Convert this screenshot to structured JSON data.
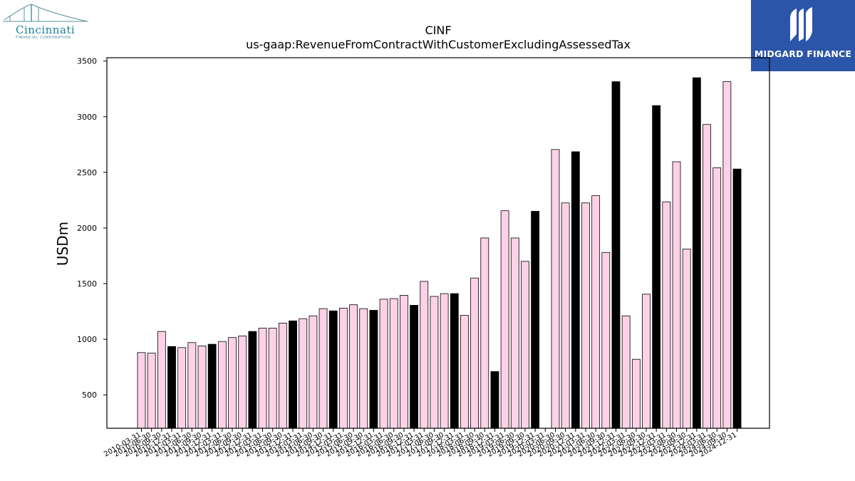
{
  "logos": {
    "left": {
      "name": "Cincinnati",
      "subtitle": "FINANCIAL CORPORATION",
      "color": "#1c7f9a"
    },
    "right": {
      "name": "MIDGARD FINANCE",
      "color": "#2b55a8"
    }
  },
  "chart_data": {
    "type": "bar",
    "title": "CINF",
    "subtitle": "us-gaap:RevenueFromContractWithCustomerExcludingAssessedTax",
    "ylabel": "USDm",
    "xlabel": "",
    "ylim": [
      200,
      3530
    ],
    "yticks": [
      500,
      1000,
      1500,
      2000,
      2500,
      3000,
      3500
    ],
    "grid": false,
    "colors": {
      "quarter": "#ffd1e6",
      "fiscal_year_end": "#000000",
      "edge": "#000000"
    },
    "categories": [
      "2010-03-31",
      "2010-06-30",
      "2010-09-30",
      "2010-12-31",
      "2011-03-31",
      "2011-06-30",
      "2011-09-30",
      "2011-12-31",
      "2012-03-31",
      "2012-06-30",
      "2012-09-30",
      "2012-12-31",
      "2013-03-31",
      "2013-06-30",
      "2013-09-30",
      "2013-12-31",
      "2014-03-31",
      "2014-06-30",
      "2014-09-30",
      "2014-12-31",
      "2015-03-31",
      "2015-06-30",
      "2015-09-30",
      "2015-12-31",
      "2016-03-31",
      "2016-06-30",
      "2016-09-30",
      "2016-12-31",
      "2017-03-31",
      "2017-06-30",
      "2017-09-30",
      "2017-12-31",
      "2018-03-31",
      "2018-06-30",
      "2018-09-30",
      "2018-12-31",
      "2019-03-31",
      "2019-06-30",
      "2019-09-30",
      "2019-12-31",
      "2020-03-31",
      "2020-06-30",
      "2020-09-30",
      "2020-12-31",
      "2021-03-31",
      "2021-06-30",
      "2021-09-30",
      "2021-12-31",
      "2022-03-31",
      "2022-06-30",
      "2022-09-30",
      "2022-12-31",
      "2023-03-31",
      "2023-06-30",
      "2023-09-30",
      "2023-12-31",
      "2024-03-31",
      "2024-06-30",
      "2024-09-30",
      "2024-12-31"
    ],
    "values": [
      880,
      875,
      1070,
      935,
      925,
      970,
      940,
      955,
      980,
      1015,
      1030,
      1070,
      1100,
      1100,
      1145,
      1165,
      1185,
      1210,
      1275,
      1255,
      1280,
      1310,
      1275,
      1260,
      1360,
      1365,
      1395,
      1305,
      1520,
      1385,
      1410,
      1410,
      1215,
      1550,
      1910,
      710,
      2155,
      1910,
      1700,
      2150,
      null,
      2705,
      2225,
      2685,
      2225,
      2290,
      1780,
      3315,
      1210,
      820,
      1405,
      3100,
      2235,
      2595,
      1810,
      3350,
      2930,
      2540,
      3315,
      2530
    ],
    "fiscal_year_end": [
      false,
      false,
      false,
      true,
      false,
      false,
      false,
      true,
      false,
      false,
      false,
      true,
      false,
      false,
      false,
      true,
      false,
      false,
      false,
      true,
      false,
      false,
      false,
      true,
      false,
      false,
      false,
      true,
      false,
      false,
      false,
      true,
      false,
      false,
      false,
      true,
      false,
      false,
      false,
      true,
      false,
      false,
      false,
      true,
      false,
      false,
      false,
      true,
      false,
      false,
      false,
      true,
      false,
      false,
      false,
      true,
      false,
      false,
      false,
      true
    ]
  }
}
